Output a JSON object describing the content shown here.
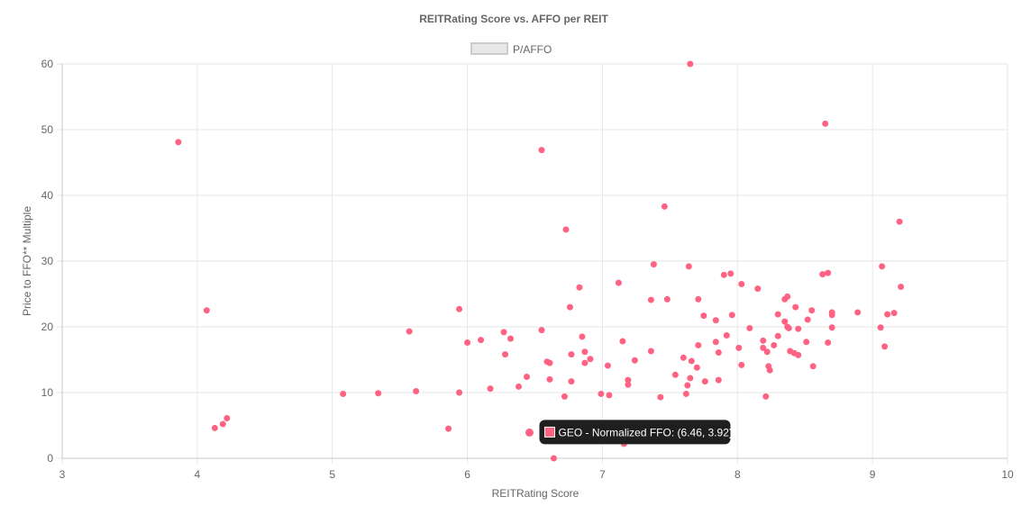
{
  "colors": {
    "point": "#ff6384",
    "grid": "#e6e6e6",
    "axis": "#c8c8c8",
    "text": "#666666",
    "tooltip_bg": "#1f1f1f"
  },
  "chart_data": {
    "type": "scatter",
    "title": "REITRating Score vs. AFFO per REIT",
    "xlabel": "REITRating Score",
    "ylabel": "Price to FFO** Multiple",
    "xlim": [
      3,
      10
    ],
    "ylim": [
      0,
      60
    ],
    "x_ticks": [
      "3",
      "4",
      "5",
      "6",
      "7",
      "8",
      "9",
      "10"
    ],
    "y_ticks": [
      "0",
      "10",
      "20",
      "30",
      "40",
      "50",
      "60"
    ],
    "grid": true,
    "legend_position": "top",
    "series": [
      {
        "name": "P/AFFO",
        "points": [
          [
            3.86,
            48.1
          ],
          [
            4.07,
            22.5
          ],
          [
            4.13,
            4.6
          ],
          [
            4.19,
            5.2
          ],
          [
            4.22,
            6.1
          ],
          [
            5.08,
            9.8
          ],
          [
            5.34,
            9.9
          ],
          [
            5.62,
            10.2
          ],
          [
            5.57,
            19.3
          ],
          [
            5.86,
            4.5
          ],
          [
            5.94,
            22.7
          ],
          [
            5.94,
            10.0
          ],
          [
            6.0,
            17.6
          ],
          [
            6.1,
            18.0
          ],
          [
            6.17,
            10.6
          ],
          [
            6.27,
            19.2
          ],
          [
            6.28,
            15.8
          ],
          [
            6.32,
            18.2
          ],
          [
            6.38,
            10.9
          ],
          [
            6.44,
            12.4
          ],
          [
            6.46,
            3.92
          ],
          [
            6.55,
            46.9
          ],
          [
            6.55,
            19.5
          ],
          [
            6.59,
            14.7
          ],
          [
            6.61,
            14.5
          ],
          [
            6.61,
            12.0
          ],
          [
            6.64,
            0.0
          ],
          [
            6.72,
            9.4
          ],
          [
            6.73,
            34.8
          ],
          [
            6.76,
            23.0
          ],
          [
            6.77,
            15.8
          ],
          [
            6.77,
            11.7
          ],
          [
            6.83,
            26.0
          ],
          [
            6.85,
            18.5
          ],
          [
            6.87,
            16.2
          ],
          [
            6.87,
            14.5
          ],
          [
            6.91,
            15.1
          ],
          [
            6.99,
            9.8
          ],
          [
            7.04,
            14.1
          ],
          [
            7.05,
            9.6
          ],
          [
            7.12,
            26.7
          ],
          [
            7.15,
            17.8
          ],
          [
            7.16,
            2.2
          ],
          [
            7.19,
            11.9
          ],
          [
            7.19,
            11.2
          ],
          [
            7.24,
            14.9
          ],
          [
            7.36,
            24.1
          ],
          [
            7.36,
            16.3
          ],
          [
            7.38,
            29.5
          ],
          [
            7.43,
            9.3
          ],
          [
            7.46,
            38.3
          ],
          [
            7.48,
            24.2
          ],
          [
            7.54,
            12.7
          ],
          [
            7.6,
            15.3
          ],
          [
            7.62,
            9.8
          ],
          [
            7.63,
            11.1
          ],
          [
            7.64,
            29.2
          ],
          [
            7.65,
            60.0
          ],
          [
            7.65,
            12.2
          ],
          [
            7.66,
            14.8
          ],
          [
            7.7,
            13.8
          ],
          [
            7.71,
            24.2
          ],
          [
            7.71,
            17.2
          ],
          [
            7.75,
            21.7
          ],
          [
            7.76,
            11.7
          ],
          [
            7.84,
            21.0
          ],
          [
            7.84,
            17.7
          ],
          [
            7.86,
            16.1
          ],
          [
            7.86,
            11.9
          ],
          [
            7.9,
            27.9
          ],
          [
            7.92,
            18.7
          ],
          [
            7.95,
            28.1
          ],
          [
            7.96,
            21.8
          ],
          [
            8.01,
            16.8
          ],
          [
            8.03,
            26.5
          ],
          [
            8.03,
            14.2
          ],
          [
            8.09,
            19.8
          ],
          [
            8.15,
            25.8
          ],
          [
            8.19,
            17.9
          ],
          [
            8.19,
            16.8
          ],
          [
            8.21,
            9.4
          ],
          [
            8.22,
            16.2
          ],
          [
            8.23,
            14.0
          ],
          [
            8.24,
            13.4
          ],
          [
            8.27,
            17.2
          ],
          [
            8.3,
            21.9
          ],
          [
            8.3,
            18.6
          ],
          [
            8.35,
            24.2
          ],
          [
            8.35,
            20.8
          ],
          [
            8.37,
            24.6
          ],
          [
            8.37,
            20.0
          ],
          [
            8.38,
            19.8
          ],
          [
            8.39,
            16.3
          ],
          [
            8.42,
            16.0
          ],
          [
            8.43,
            23.0
          ],
          [
            8.45,
            19.7
          ],
          [
            8.45,
            15.7
          ],
          [
            8.51,
            17.7
          ],
          [
            8.52,
            21.1
          ],
          [
            8.55,
            22.5
          ],
          [
            8.56,
            14.0
          ],
          [
            8.63,
            28.0
          ],
          [
            8.65,
            50.9
          ],
          [
            8.67,
            28.2
          ],
          [
            8.67,
            17.6
          ],
          [
            8.7,
            22.2
          ],
          [
            8.7,
            21.8
          ],
          [
            8.7,
            19.9
          ],
          [
            8.89,
            22.2
          ],
          [
            9.06,
            19.9
          ],
          [
            9.07,
            29.2
          ],
          [
            9.09,
            17.0
          ],
          [
            9.11,
            21.9
          ],
          [
            9.16,
            22.1
          ],
          [
            9.2,
            36.0
          ],
          [
            9.21,
            26.1
          ]
        ]
      }
    ],
    "tooltip": {
      "text": "GEO - Normalized FFO: (6.46, 3.92)",
      "x": 6.46,
      "y": 3.92
    }
  }
}
